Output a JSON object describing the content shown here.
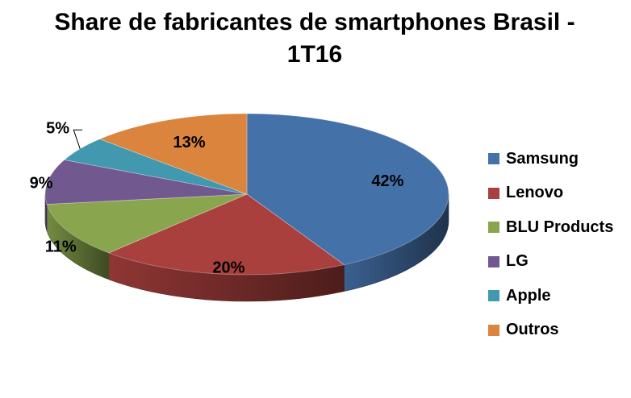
{
  "chart_data": {
    "type": "pie",
    "title_line1": "Share de fabricantes de smartphones Brasil -",
    "title_line2": "1T16",
    "series": [
      {
        "name": "Samsung",
        "value": 42,
        "label": "42%",
        "color": "#4571A9"
      },
      {
        "name": "Lenovo",
        "value": 20,
        "label": "20%",
        "color": "#A9403D"
      },
      {
        "name": "BLU Products",
        "value": 11,
        "label": "11%",
        "color": "#89A54E"
      },
      {
        "name": "LG",
        "value": 9,
        "label": "9%",
        "color": "#71588F"
      },
      {
        "name": "Apple",
        "value": 5,
        "label": "5%",
        "color": "#4198AF"
      },
      {
        "name": "Outros",
        "value": 13,
        "label": "13%",
        "color": "#DB843D"
      }
    ],
    "legend_position": "right",
    "style": "3d-pie"
  }
}
